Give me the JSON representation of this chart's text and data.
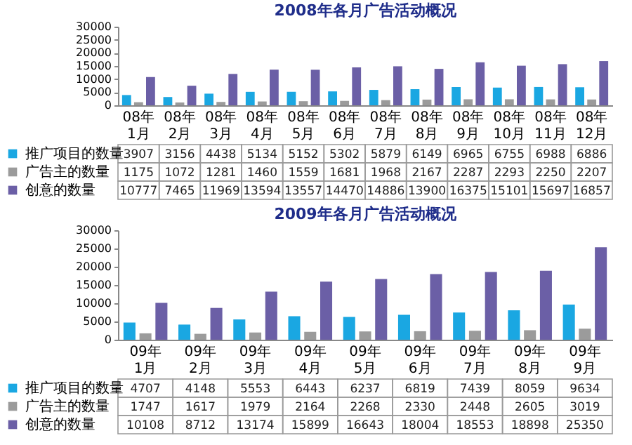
{
  "chart_data": [
    {
      "type": "bar",
      "title": "2008年各月广告活动概况",
      "categories": [
        "08年1月",
        "08年2月",
        "08年3月",
        "08年4月",
        "08年5月",
        "08年6月",
        "08年7月",
        "08年8月",
        "08年9月",
        "08年10月",
        "08年11月",
        "08年12月"
      ],
      "series": [
        {
          "name": "推广项目的数量",
          "color": "#1aa7e2",
          "values": [
            3907,
            3156,
            4438,
            5134,
            5152,
            5302,
            5879,
            6149,
            6965,
            6755,
            6988,
            6886
          ]
        },
        {
          "name": "广告主的数量",
          "color": "#9b9b9b",
          "values": [
            1175,
            1072,
            1281,
            1460,
            1559,
            1681,
            1968,
            2167,
            2287,
            2293,
            2250,
            2207
          ]
        },
        {
          "name": "创意的数量",
          "color": "#6b5fa6",
          "values": [
            10777,
            7465,
            11969,
            13594,
            13557,
            14470,
            14886,
            13900,
            16375,
            15101,
            15697,
            16857
          ]
        }
      ],
      "ylim": [
        0,
        30000
      ],
      "yticks": [
        0,
        5000,
        10000,
        15000,
        20000,
        25000,
        30000
      ],
      "data_labels": true,
      "legend": "bottom left"
    },
    {
      "type": "bar",
      "title": "2009年各月广告活动概况",
      "categories": [
        "09年1月",
        "09年2月",
        "09年3月",
        "09年4月",
        "09年5月",
        "09年6月",
        "09年7月",
        "09年8月",
        "09年9月"
      ],
      "series": [
        {
          "name": "推广项目的数量",
          "color": "#1aa7e2",
          "values": [
            4707,
            4148,
            5553,
            6443,
            6237,
            6819,
            7439,
            8059,
            9634
          ]
        },
        {
          "name": "广告主的数量",
          "color": "#9b9b9b",
          "values": [
            1747,
            1617,
            1979,
            2164,
            2268,
            2330,
            2448,
            2605,
            3019
          ]
        },
        {
          "name": "创意的数量",
          "color": "#6b5fa6",
          "values": [
            10108,
            8712,
            13174,
            15899,
            16643,
            18004,
            18553,
            18898,
            25350
          ]
        }
      ],
      "ylim": [
        0,
        30000
      ],
      "yticks": [
        0,
        5000,
        10000,
        15000,
        20000,
        25000,
        30000
      ],
      "data_labels": true,
      "legend": "bottom left"
    }
  ]
}
